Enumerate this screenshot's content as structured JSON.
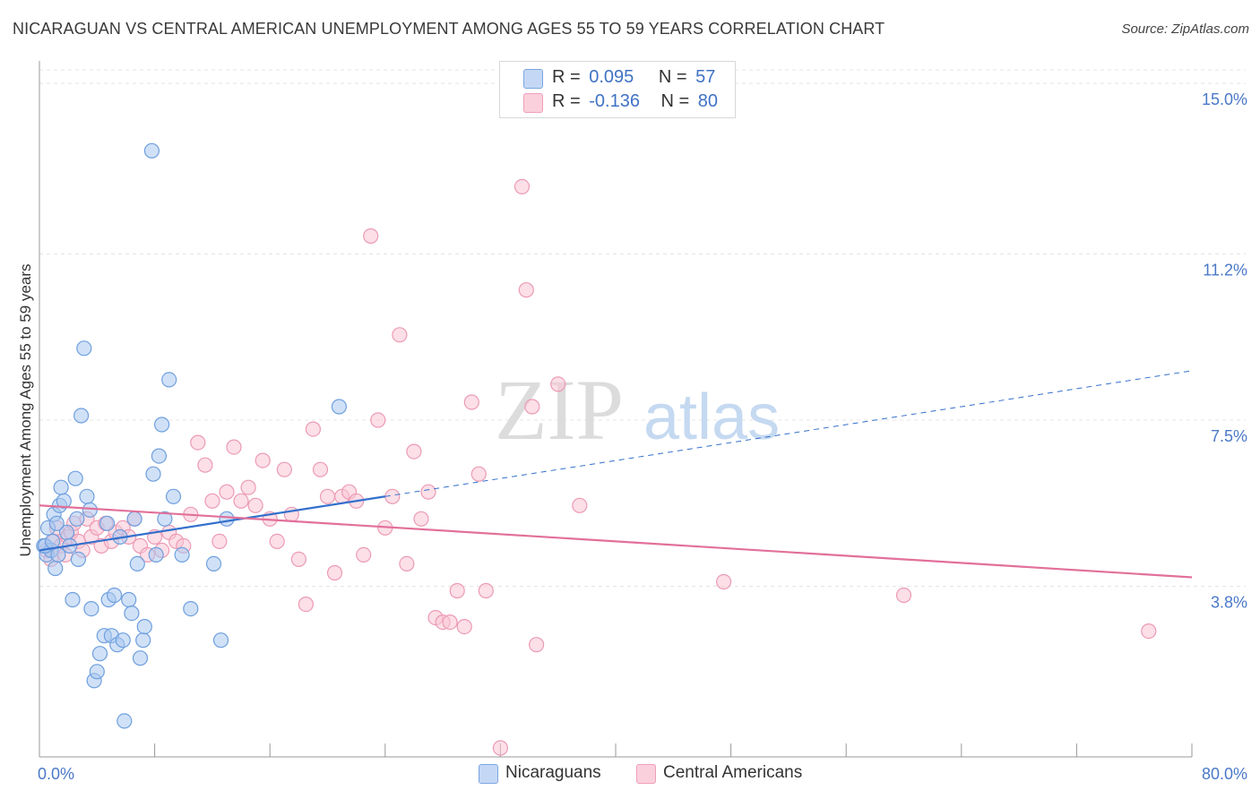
{
  "header": {
    "title": "NICARAGUAN VS CENTRAL AMERICAN UNEMPLOYMENT AMONG AGES 55 TO 59 YEARS CORRELATION CHART",
    "source": "Source: ZipAtlas.com"
  },
  "watermark": {
    "zip": "ZIP",
    "atlas": "atlas"
  },
  "legend": {
    "rows": [
      {
        "r_label": "R =",
        "r_value": "0.095",
        "n_label": "N =",
        "n_value": "57",
        "color": "#aac8f0"
      },
      {
        "r_label": "R =",
        "r_value": "-0.136",
        "n_label": "N =",
        "n_value": "80",
        "color": "#f7b8cc"
      }
    ]
  },
  "bottom_legend": [
    {
      "label": "Nicaraguans",
      "color": "#aac8f0"
    },
    {
      "label": "Central Americans",
      "color": "#f7b8cc"
    }
  ],
  "colors": {
    "nicaraguan_fill": "#aac8f0",
    "nicaraguan_stroke": "#6f9fde",
    "nicaraguan_line": "#3370cc",
    "central_fill": "#f9c4d4",
    "central_stroke": "#ec9ab5",
    "central_line": "#e2709a",
    "tick_text": "#4a78c8",
    "grid": "#e4e4e4"
  },
  "chart_data": {
    "type": "scatter",
    "title": "NICARAGUAN VS CENTRAL AMERICAN UNEMPLOYMENT AMONG AGES 55 TO 59 YEARS CORRELATION CHART",
    "xlabel": "",
    "ylabel": "Unemployment Among Ages 55 to 59 years",
    "xlim": [
      0,
      80
    ],
    "ylim": [
      0,
      15.5
    ],
    "x_tick_labels": [
      "0.0%",
      "80.0%"
    ],
    "y_ticks": [
      3.8,
      7.5,
      11.2,
      15.0
    ],
    "y_tick_labels": [
      "3.8%",
      "7.5%",
      "11.2%",
      "15.0%"
    ],
    "grid": true,
    "legend_position": "top-center",
    "series": [
      {
        "name": "Nicaraguans",
        "r": 0.095,
        "n": 57,
        "trend": {
          "x0": 0,
          "y0": 4.6,
          "x1": 24,
          "y1": 5.8,
          "dash_x1": 80,
          "dash_y1": 8.6
        },
        "points": [
          [
            0.3,
            4.7
          ],
          [
            0.5,
            4.5
          ],
          [
            0.6,
            5.1
          ],
          [
            0.8,
            4.6
          ],
          [
            1.0,
            5.4
          ],
          [
            1.1,
            4.2
          ],
          [
            1.3,
            4.5
          ],
          [
            1.4,
            5.6
          ],
          [
            1.5,
            6.0
          ],
          [
            1.7,
            5.7
          ],
          [
            1.9,
            5.0
          ],
          [
            2.1,
            4.7
          ],
          [
            2.3,
            3.5
          ],
          [
            2.5,
            6.2
          ],
          [
            2.6,
            5.3
          ],
          [
            2.7,
            4.4
          ],
          [
            2.9,
            7.6
          ],
          [
            3.1,
            9.1
          ],
          [
            3.3,
            5.8
          ],
          [
            3.5,
            5.5
          ],
          [
            3.6,
            3.3
          ],
          [
            3.8,
            1.7
          ],
          [
            4.0,
            1.9
          ],
          [
            4.2,
            2.3
          ],
          [
            4.5,
            2.7
          ],
          [
            4.7,
            5.2
          ],
          [
            4.8,
            3.5
          ],
          [
            5.0,
            2.7
          ],
          [
            5.2,
            3.6
          ],
          [
            5.4,
            2.5
          ],
          [
            5.6,
            4.9
          ],
          [
            5.8,
            2.6
          ],
          [
            5.9,
            0.8
          ],
          [
            6.2,
            3.5
          ],
          [
            6.4,
            3.2
          ],
          [
            6.6,
            5.3
          ],
          [
            6.8,
            4.3
          ],
          [
            7.0,
            2.2
          ],
          [
            7.2,
            2.6
          ],
          [
            7.3,
            2.9
          ],
          [
            7.8,
            13.5
          ],
          [
            7.9,
            6.3
          ],
          [
            8.1,
            4.5
          ],
          [
            8.3,
            6.7
          ],
          [
            8.5,
            7.4
          ],
          [
            8.7,
            5.3
          ],
          [
            9.0,
            8.4
          ],
          [
            9.3,
            5.8
          ],
          [
            9.9,
            4.5
          ],
          [
            10.5,
            3.3
          ],
          [
            12.1,
            4.3
          ],
          [
            12.6,
            2.6
          ],
          [
            13.0,
            5.3
          ],
          [
            20.8,
            7.8
          ],
          [
            0.4,
            4.7
          ],
          [
            0.9,
            4.8
          ],
          [
            1.2,
            5.2
          ]
        ]
      },
      {
        "name": "Central Americans",
        "r": -0.136,
        "n": 80,
        "trend": {
          "x0": 0,
          "y0": 5.6,
          "x1": 80,
          "y1": 4.0
        },
        "points": [
          [
            0.5,
            4.6
          ],
          [
            0.8,
            4.4
          ],
          [
            1.0,
            4.8
          ],
          [
            1.2,
            5.1
          ],
          [
            1.5,
            4.7
          ],
          [
            1.8,
            4.5
          ],
          [
            2.0,
            4.9
          ],
          [
            2.2,
            5.0
          ],
          [
            2.4,
            5.2
          ],
          [
            2.7,
            4.8
          ],
          [
            3.0,
            4.6
          ],
          [
            3.3,
            5.3
          ],
          [
            3.6,
            4.9
          ],
          [
            4.0,
            5.1
          ],
          [
            4.3,
            4.7
          ],
          [
            4.6,
            5.2
          ],
          [
            5.0,
            4.8
          ],
          [
            5.3,
            5.0
          ],
          [
            5.8,
            5.1
          ],
          [
            6.2,
            4.9
          ],
          [
            6.6,
            5.3
          ],
          [
            7.0,
            4.7
          ],
          [
            7.5,
            4.5
          ],
          [
            8.0,
            4.9
          ],
          [
            8.5,
            4.6
          ],
          [
            9.0,
            5.0
          ],
          [
            9.5,
            4.8
          ],
          [
            10.0,
            4.7
          ],
          [
            10.5,
            5.4
          ],
          [
            11.0,
            7.0
          ],
          [
            11.5,
            6.5
          ],
          [
            12.0,
            5.7
          ],
          [
            12.5,
            4.8
          ],
          [
            13.0,
            5.9
          ],
          [
            13.5,
            6.9
          ],
          [
            14.0,
            5.7
          ],
          [
            14.5,
            6.0
          ],
          [
            15.0,
            5.6
          ],
          [
            15.5,
            6.6
          ],
          [
            16.0,
            5.3
          ],
          [
            16.5,
            4.8
          ],
          [
            17.0,
            6.4
          ],
          [
            17.5,
            5.4
          ],
          [
            18.0,
            4.4
          ],
          [
            18.5,
            3.4
          ],
          [
            19.0,
            7.3
          ],
          [
            19.5,
            6.4
          ],
          [
            20.0,
            5.8
          ],
          [
            20.5,
            4.1
          ],
          [
            21.0,
            5.8
          ],
          [
            21.5,
            5.9
          ],
          [
            22.0,
            5.7
          ],
          [
            22.5,
            4.5
          ],
          [
            23.0,
            11.6
          ],
          [
            23.5,
            7.5
          ],
          [
            24.0,
            5.1
          ],
          [
            24.5,
            5.8
          ],
          [
            25.0,
            9.4
          ],
          [
            25.5,
            4.3
          ],
          [
            26.0,
            6.8
          ],
          [
            26.5,
            5.3
          ],
          [
            27.0,
            5.9
          ],
          [
            27.5,
            3.1
          ],
          [
            28.0,
            3.0
          ],
          [
            28.5,
            3.0
          ],
          [
            29.0,
            3.7
          ],
          [
            29.5,
            2.9
          ],
          [
            30.0,
            7.9
          ],
          [
            30.5,
            6.3
          ],
          [
            31.0,
            3.7
          ],
          [
            33.5,
            12.7
          ],
          [
            33.8,
            10.4
          ],
          [
            34.2,
            7.8
          ],
          [
            36.0,
            8.3
          ],
          [
            37.5,
            5.6
          ],
          [
            47.5,
            3.9
          ],
          [
            60.0,
            3.6
          ],
          [
            77.0,
            2.8
          ],
          [
            34.5,
            2.5
          ],
          [
            32.0,
            0.2
          ]
        ]
      }
    ]
  }
}
